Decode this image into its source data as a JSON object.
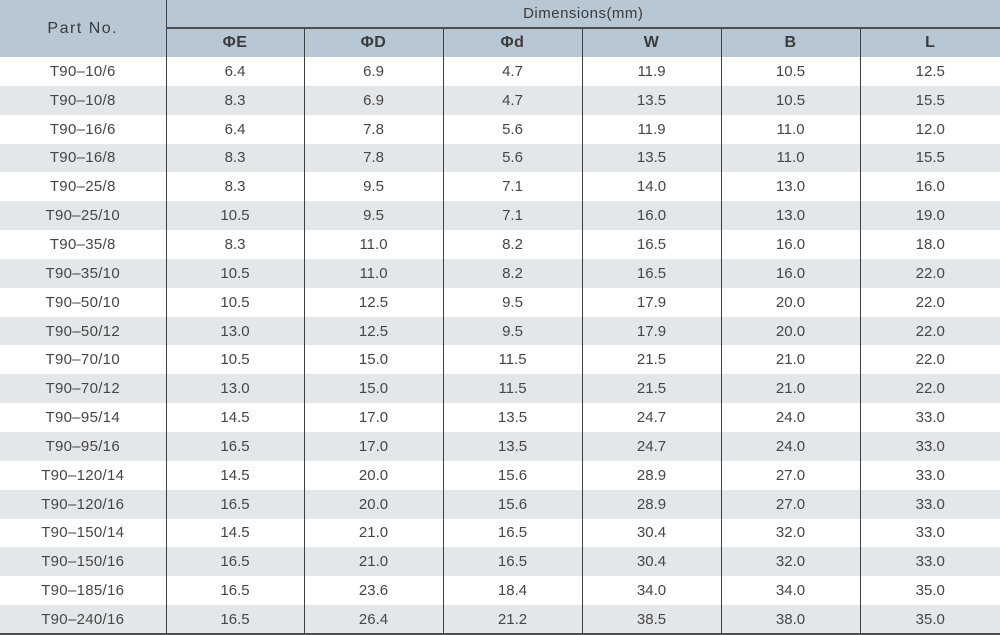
{
  "colors": {
    "header_bg": "#b7c7d4",
    "alt_row_bg": "#e3e7ea",
    "line": "#3f3f3f",
    "heavy_line": "#4d4d4d"
  },
  "table": {
    "part_no_header": "Part No.",
    "dimensions_header": "Dimensions(mm)",
    "columns": [
      "ΦE",
      "ΦD",
      "Φd",
      "W",
      "B",
      "L"
    ],
    "rows": [
      {
        "part": "T90–10/6",
        "values": [
          "6.4",
          "6.9",
          "4.7",
          "11.9",
          "10.5",
          "12.5"
        ]
      },
      {
        "part": "T90–10/8",
        "values": [
          "8.3",
          "6.9",
          "4.7",
          "13.5",
          "10.5",
          "15.5"
        ]
      },
      {
        "part": "T90–16/6",
        "values": [
          "6.4",
          "7.8",
          "5.6",
          "11.9",
          "11.0",
          "12.0"
        ]
      },
      {
        "part": "T90–16/8",
        "values": [
          "8.3",
          "7.8",
          "5.6",
          "13.5",
          "11.0",
          "15.5"
        ]
      },
      {
        "part": "T90–25/8",
        "values": [
          "8.3",
          "9.5",
          "7.1",
          "14.0",
          "13.0",
          "16.0"
        ]
      },
      {
        "part": "T90–25/10",
        "values": [
          "10.5",
          "9.5",
          "7.1",
          "16.0",
          "13.0",
          "19.0"
        ]
      },
      {
        "part": "T90–35/8",
        "values": [
          "8.3",
          "11.0",
          "8.2",
          "16.5",
          "16.0",
          "18.0"
        ]
      },
      {
        "part": "T90–35/10",
        "values": [
          "10.5",
          "11.0",
          "8.2",
          "16.5",
          "16.0",
          "22.0"
        ]
      },
      {
        "part": "T90–50/10",
        "values": [
          "10.5",
          "12.5",
          "9.5",
          "17.9",
          "20.0",
          "22.0"
        ]
      },
      {
        "part": "T90–50/12",
        "values": [
          "13.0",
          "12.5",
          "9.5",
          "17.9",
          "20.0",
          "22.0"
        ]
      },
      {
        "part": "T90–70/10",
        "values": [
          "10.5",
          "15.0",
          "11.5",
          "21.5",
          "21.0",
          "22.0"
        ]
      },
      {
        "part": "T90–70/12",
        "values": [
          "13.0",
          "15.0",
          "11.5",
          "21.5",
          "21.0",
          "22.0"
        ]
      },
      {
        "part": "T90–95/14",
        "values": [
          "14.5",
          "17.0",
          "13.5",
          "24.7",
          "24.0",
          "33.0"
        ]
      },
      {
        "part": "T90–95/16",
        "values": [
          "16.5",
          "17.0",
          "13.5",
          "24.7",
          "24.0",
          "33.0"
        ]
      },
      {
        "part": "T90–120/14",
        "values": [
          "14.5",
          "20.0",
          "15.6",
          "28.9",
          "27.0",
          "33.0"
        ]
      },
      {
        "part": "T90–120/16",
        "values": [
          "16.5",
          "20.0",
          "15.6",
          "28.9",
          "27.0",
          "33.0"
        ]
      },
      {
        "part": "T90–150/14",
        "values": [
          "14.5",
          "21.0",
          "16.5",
          "30.4",
          "32.0",
          "33.0"
        ]
      },
      {
        "part": "T90–150/16",
        "values": [
          "16.5",
          "21.0",
          "16.5",
          "30.4",
          "32.0",
          "33.0"
        ]
      },
      {
        "part": "T90–185/16",
        "values": [
          "16.5",
          "23.6",
          "18.4",
          "34.0",
          "34.0",
          "35.0"
        ]
      },
      {
        "part": "T90–240/16",
        "values": [
          "16.5",
          "26.4",
          "21.2",
          "38.5",
          "38.0",
          "35.0"
        ]
      }
    ]
  }
}
